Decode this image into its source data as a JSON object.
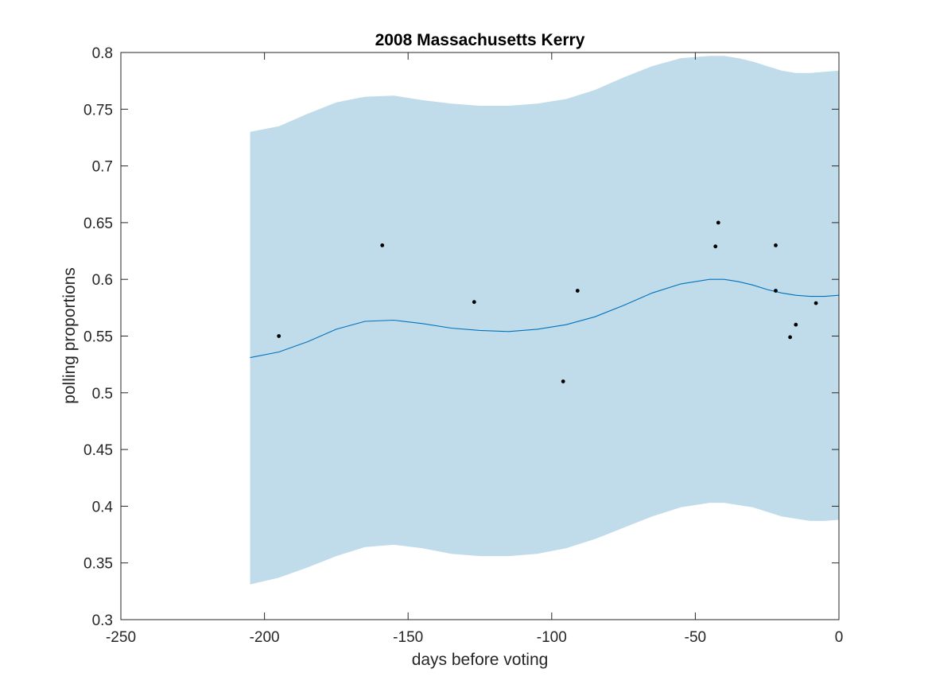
{
  "chart_data": {
    "type": "line",
    "title": "2008 Massachusetts Kerry",
    "xlabel": "days before voting",
    "ylabel": "polling proportions",
    "xlim": [
      -250,
      0
    ],
    "ylim": [
      0.3,
      0.8
    ],
    "xticks": [
      -250,
      -200,
      -150,
      -100,
      -50,
      0
    ],
    "yticks": [
      0.3,
      0.35,
      0.4,
      0.45,
      0.5,
      0.55,
      0.6,
      0.65,
      0.7,
      0.75,
      0.8
    ],
    "grid": false,
    "colors": {
      "band": "#c0dcea",
      "line": "#0072bd",
      "points": "#000000",
      "axes": "#262626"
    },
    "series": [
      {
        "type": "area",
        "x": [
          -205,
          -195,
          -185,
          -175,
          -165,
          -155,
          -145,
          -135,
          -125,
          -115,
          -105,
          -95,
          -85,
          -75,
          -65,
          -55,
          -45,
          -40,
          -35,
          -30,
          -25,
          -20,
          -15,
          -10,
          -5,
          0
        ],
        "lower": [
          0.331,
          0.337,
          0.346,
          0.356,
          0.364,
          0.366,
          0.363,
          0.358,
          0.356,
          0.356,
          0.358,
          0.363,
          0.371,
          0.381,
          0.391,
          0.399,
          0.403,
          0.403,
          0.401,
          0.399,
          0.395,
          0.391,
          0.389,
          0.387,
          0.387,
          0.388
        ],
        "upper": [
          0.73,
          0.735,
          0.746,
          0.756,
          0.761,
          0.762,
          0.758,
          0.755,
          0.753,
          0.753,
          0.755,
          0.759,
          0.767,
          0.778,
          0.788,
          0.795,
          0.797,
          0.797,
          0.795,
          0.792,
          0.788,
          0.784,
          0.782,
          0.782,
          0.783,
          0.784
        ]
      },
      {
        "type": "line",
        "x": [
          -205,
          -195,
          -185,
          -175,
          -165,
          -155,
          -145,
          -135,
          -125,
          -115,
          -105,
          -95,
          -85,
          -75,
          -65,
          -55,
          -45,
          -40,
          -35,
          -30,
          -25,
          -20,
          -15,
          -10,
          -5,
          0
        ],
        "values": [
          0.531,
          0.536,
          0.545,
          0.556,
          0.563,
          0.564,
          0.561,
          0.557,
          0.555,
          0.554,
          0.556,
          0.56,
          0.567,
          0.577,
          0.588,
          0.596,
          0.6,
          0.6,
          0.598,
          0.595,
          0.591,
          0.588,
          0.586,
          0.585,
          0.585,
          0.586
        ]
      },
      {
        "type": "scatter",
        "x": [
          -195,
          -159,
          -127,
          -96,
          -91,
          -43,
          -42,
          -22,
          -22,
          -17,
          -15,
          -8
        ],
        "values": [
          0.55,
          0.63,
          0.58,
          0.51,
          0.59,
          0.629,
          0.65,
          0.63,
          0.59,
          0.549,
          0.56,
          0.579
        ]
      }
    ]
  }
}
